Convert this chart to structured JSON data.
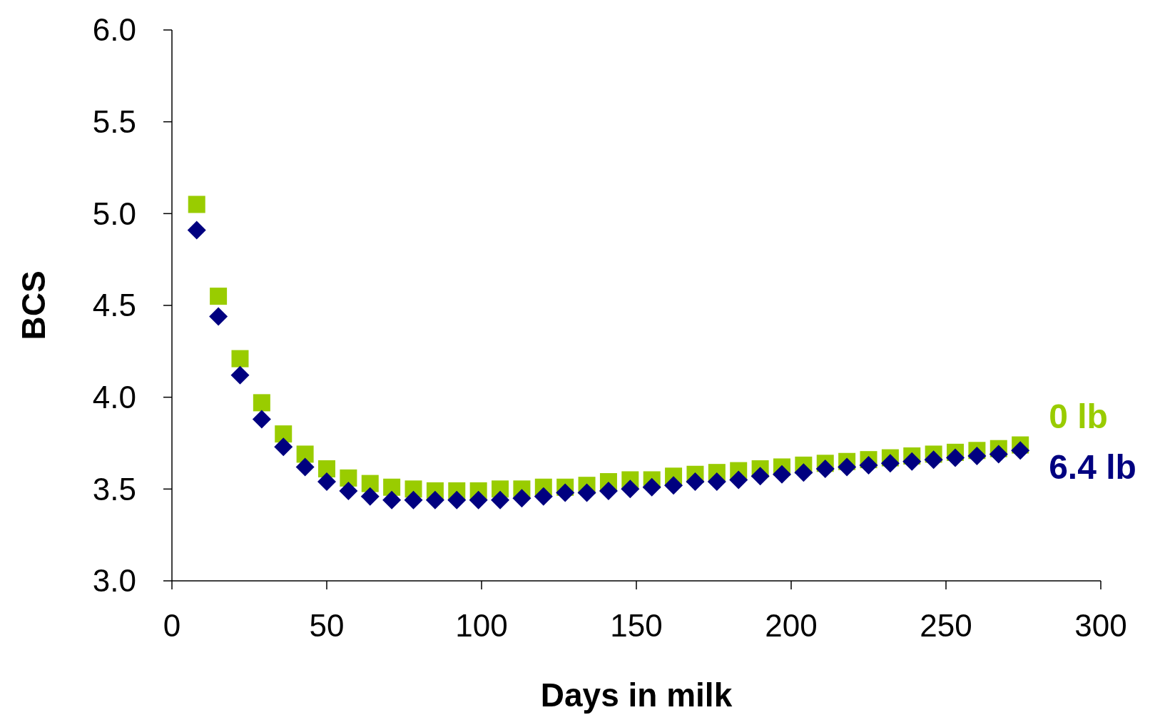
{
  "chart_data": {
    "type": "scatter",
    "xlabel": "Days in milk",
    "ylabel": "BCS",
    "xlim": [
      0,
      300
    ],
    "xticks": [
      0,
      50,
      100,
      150,
      200,
      250,
      300
    ],
    "ylim": [
      3,
      6
    ],
    "yticks": [
      {
        "value": 3,
        "label": "3.0"
      },
      {
        "value": 3.5,
        "label": "3.5"
      },
      {
        "value": 4,
        "label": "4.0"
      },
      {
        "value": 4.5,
        "label": "4.5"
      },
      {
        "value": 5,
        "label": "5.0"
      },
      {
        "value": 5.5,
        "label": "5.5"
      },
      {
        "value": 6,
        "label": "6.0"
      }
    ],
    "grid": false,
    "legend": false,
    "x": [
      8,
      15,
      22,
      29,
      36,
      43,
      50,
      57,
      64,
      71,
      78,
      85,
      92,
      99,
      106,
      113,
      120,
      127,
      134,
      141,
      148,
      155,
      162,
      169,
      176,
      183,
      190,
      197,
      204,
      211,
      218,
      225,
      232,
      239,
      246,
      253,
      260,
      267,
      274
    ],
    "series": [
      {
        "name": "0 lb",
        "color": "#99cc00",
        "marker": "square",
        "values": [
          5.05,
          4.55,
          4.21,
          3.97,
          3.8,
          3.69,
          3.61,
          3.56,
          3.53,
          3.51,
          3.5,
          3.49,
          3.49,
          3.49,
          3.5,
          3.5,
          3.51,
          3.51,
          3.52,
          3.54,
          3.55,
          3.55,
          3.57,
          3.58,
          3.59,
          3.6,
          3.61,
          3.62,
          3.63,
          3.64,
          3.65,
          3.66,
          3.67,
          3.68,
          3.69,
          3.7,
          3.71,
          3.72,
          3.74
        ]
      },
      {
        "name": "6.4 lb",
        "color": "#000080",
        "marker": "diamond",
        "values": [
          4.91,
          4.44,
          4.12,
          3.88,
          3.73,
          3.62,
          3.54,
          3.49,
          3.46,
          3.44,
          3.44,
          3.44,
          3.44,
          3.44,
          3.44,
          3.45,
          3.46,
          3.48,
          3.48,
          3.49,
          3.5,
          3.51,
          3.52,
          3.54,
          3.54,
          3.55,
          3.57,
          3.58,
          3.59,
          3.61,
          3.62,
          3.63,
          3.64,
          3.65,
          3.66,
          3.67,
          3.68,
          3.69,
          3.71
        ]
      }
    ]
  }
}
